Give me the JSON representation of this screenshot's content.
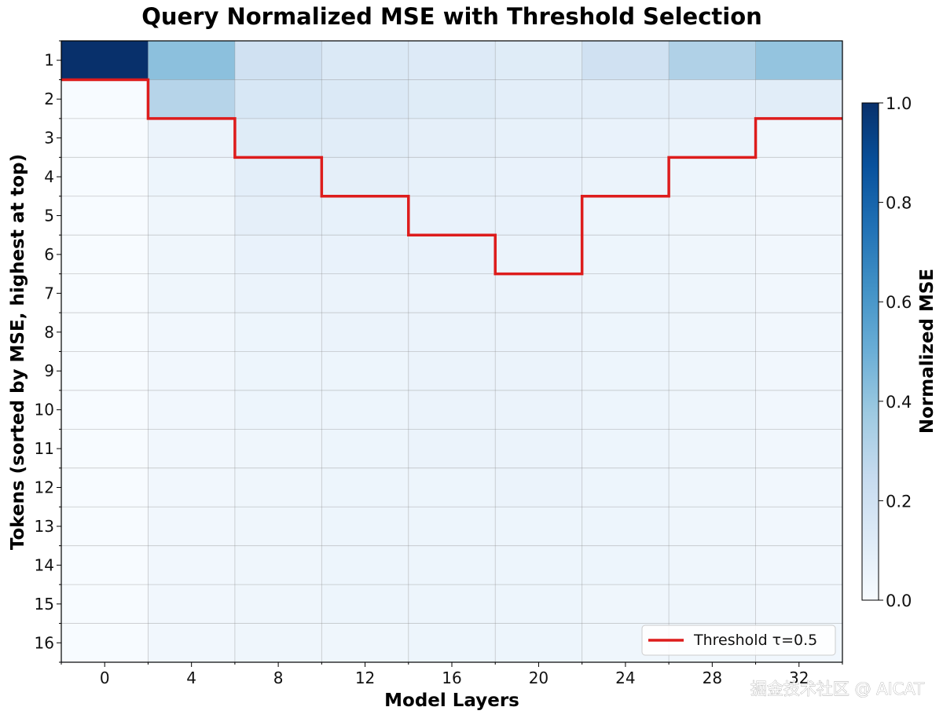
{
  "chart_data": {
    "type": "heatmap",
    "title": "Query Normalized MSE with Threshold Selection",
    "xlabel": "Model Layers",
    "ylabel": "Tokens (sorted by MSE, highest at top)",
    "x_tick_labels": [
      "0",
      "4",
      "8",
      "12",
      "16",
      "20",
      "24",
      "28",
      "32"
    ],
    "y_tick_labels": [
      "1",
      "2",
      "3",
      "4",
      "5",
      "6",
      "7",
      "8",
      "9",
      "10",
      "11",
      "12",
      "13",
      "14",
      "15",
      "16"
    ],
    "colormap": "Blues",
    "values": [
      [
        1.0,
        0.42,
        0.2,
        0.14,
        0.13,
        0.12,
        0.2,
        0.32,
        0.4
      ],
      [
        0.0,
        0.3,
        0.16,
        0.14,
        0.12,
        0.1,
        0.1,
        0.1,
        0.11
      ],
      [
        0.0,
        0.06,
        0.12,
        0.11,
        0.09,
        0.08,
        0.07,
        0.06,
        0.04
      ],
      [
        0.0,
        0.05,
        0.1,
        0.09,
        0.08,
        0.07,
        0.06,
        0.05,
        0.03
      ],
      [
        0.0,
        0.04,
        0.09,
        0.08,
        0.07,
        0.07,
        0.05,
        0.04,
        0.03
      ],
      [
        0.0,
        0.04,
        0.07,
        0.07,
        0.07,
        0.06,
        0.05,
        0.04,
        0.03
      ],
      [
        0.0,
        0.04,
        0.06,
        0.06,
        0.06,
        0.06,
        0.05,
        0.04,
        0.03
      ],
      [
        0.0,
        0.03,
        0.05,
        0.06,
        0.06,
        0.06,
        0.05,
        0.04,
        0.03
      ],
      [
        0.0,
        0.03,
        0.05,
        0.05,
        0.06,
        0.06,
        0.05,
        0.04,
        0.03
      ],
      [
        0.0,
        0.03,
        0.05,
        0.05,
        0.06,
        0.06,
        0.05,
        0.04,
        0.03
      ],
      [
        0.0,
        0.03,
        0.04,
        0.05,
        0.06,
        0.06,
        0.05,
        0.04,
        0.03
      ],
      [
        0.0,
        0.03,
        0.04,
        0.05,
        0.05,
        0.06,
        0.05,
        0.04,
        0.03
      ],
      [
        0.0,
        0.03,
        0.04,
        0.05,
        0.05,
        0.05,
        0.05,
        0.04,
        0.03
      ],
      [
        0.0,
        0.03,
        0.04,
        0.05,
        0.05,
        0.05,
        0.05,
        0.04,
        0.03
      ],
      [
        0.0,
        0.03,
        0.04,
        0.05,
        0.05,
        0.05,
        0.04,
        0.04,
        0.03
      ],
      [
        0.0,
        0.03,
        0.04,
        0.04,
        0.05,
        0.05,
        0.04,
        0.04,
        0.03
      ]
    ],
    "threshold": {
      "name": "Threshold τ=0.5",
      "color": "#dd1c1c",
      "tokens_selected_per_column": [
        1,
        2,
        3,
        4,
        5,
        6,
        4,
        3,
        2
      ]
    },
    "colorbar": {
      "label": "Normalized MSE",
      "range": [
        0.0,
        1.0
      ],
      "tick_labels": [
        "0.0",
        "0.2",
        "0.4",
        "0.6",
        "0.8",
        "1.0"
      ]
    },
    "grid": true,
    "legend_position": "bottom-right"
  },
  "watermark": "掘金技术社区 @ AICAT"
}
